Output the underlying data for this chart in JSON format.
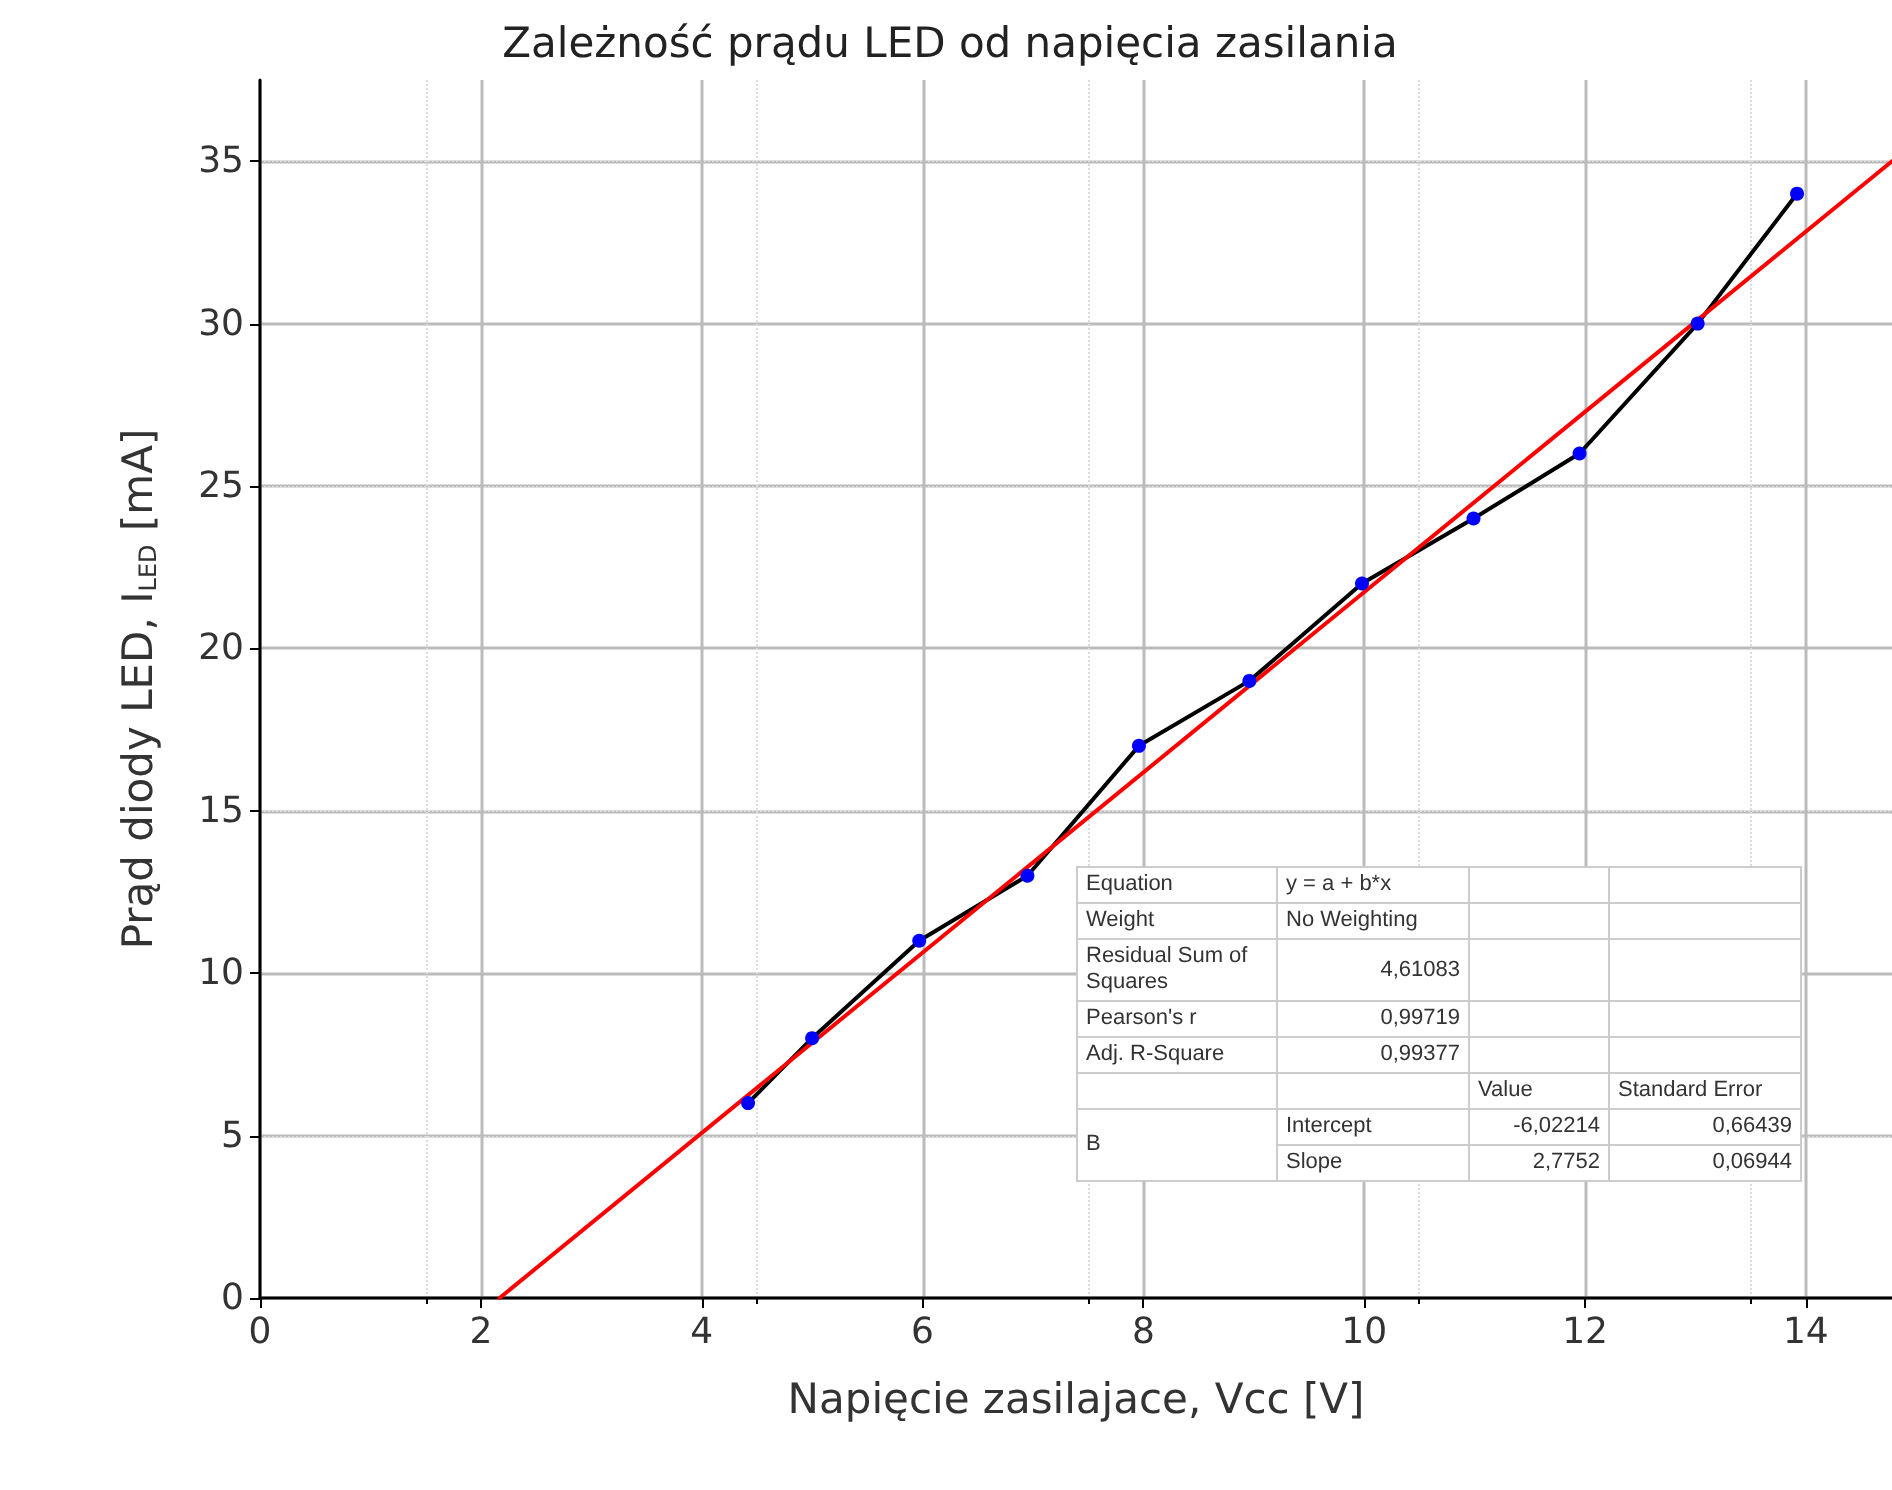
{
  "chart_data": {
    "type": "line",
    "title": "Zależność prądu LED od napięcia zasilania",
    "xlabel": "Napięcie zasilajace, Vcc [V]",
    "ylabel": "Prąd diody LED, I$_{LED}$ [mA]",
    "xlim": [
      0,
      14.78
    ],
    "ylim": [
      0,
      37.5
    ],
    "xticks": [
      0,
      2,
      4,
      6,
      8,
      10,
      12,
      14
    ],
    "yticks": [
      0,
      5,
      10,
      15,
      20,
      25,
      30,
      35
    ],
    "grid": true,
    "marker": "circle",
    "line_style": "solid",
    "series": [
      {
        "color": "#000000",
        "colors": [
          "#0000ff",
          "#0000ff",
          "#0000ff",
          "#0000ff",
          "#0000ff",
          "#0000ff",
          "#0000ff",
          "#0000ff",
          "#0000ff",
          "#0000ff",
          "#0000ff"
        ],
        "x": [
          4.42,
          5,
          5.97,
          6.95,
          7.96,
          8.96,
          9.98,
          10.99,
          11.95,
          13.02,
          13.92
        ],
        "values": [
          6,
          8,
          11,
          13,
          17,
          19,
          22,
          24,
          26,
          30,
          34
        ]
      },
      {
        "color": "#ff0000",
        "marker": "none",
        "x": [
          2.17,
          14.78
        ],
        "values": [
          0,
          35
        ]
      }
    ],
    "annotations": [
      "Equation",
      "y = a + b*x",
      "Weight",
      "No Weighting",
      "Residual Sum of Squares",
      "4,61083",
      "Pearson's r",
      "0,99719",
      "Adj. R-Square",
      "0,99377",
      "Value",
      "Standard Error",
      "B",
      "Intercept",
      "-6,02214",
      "0,66439",
      "Slope",
      "2,7752",
      "0,06944"
    ]
  }
}
